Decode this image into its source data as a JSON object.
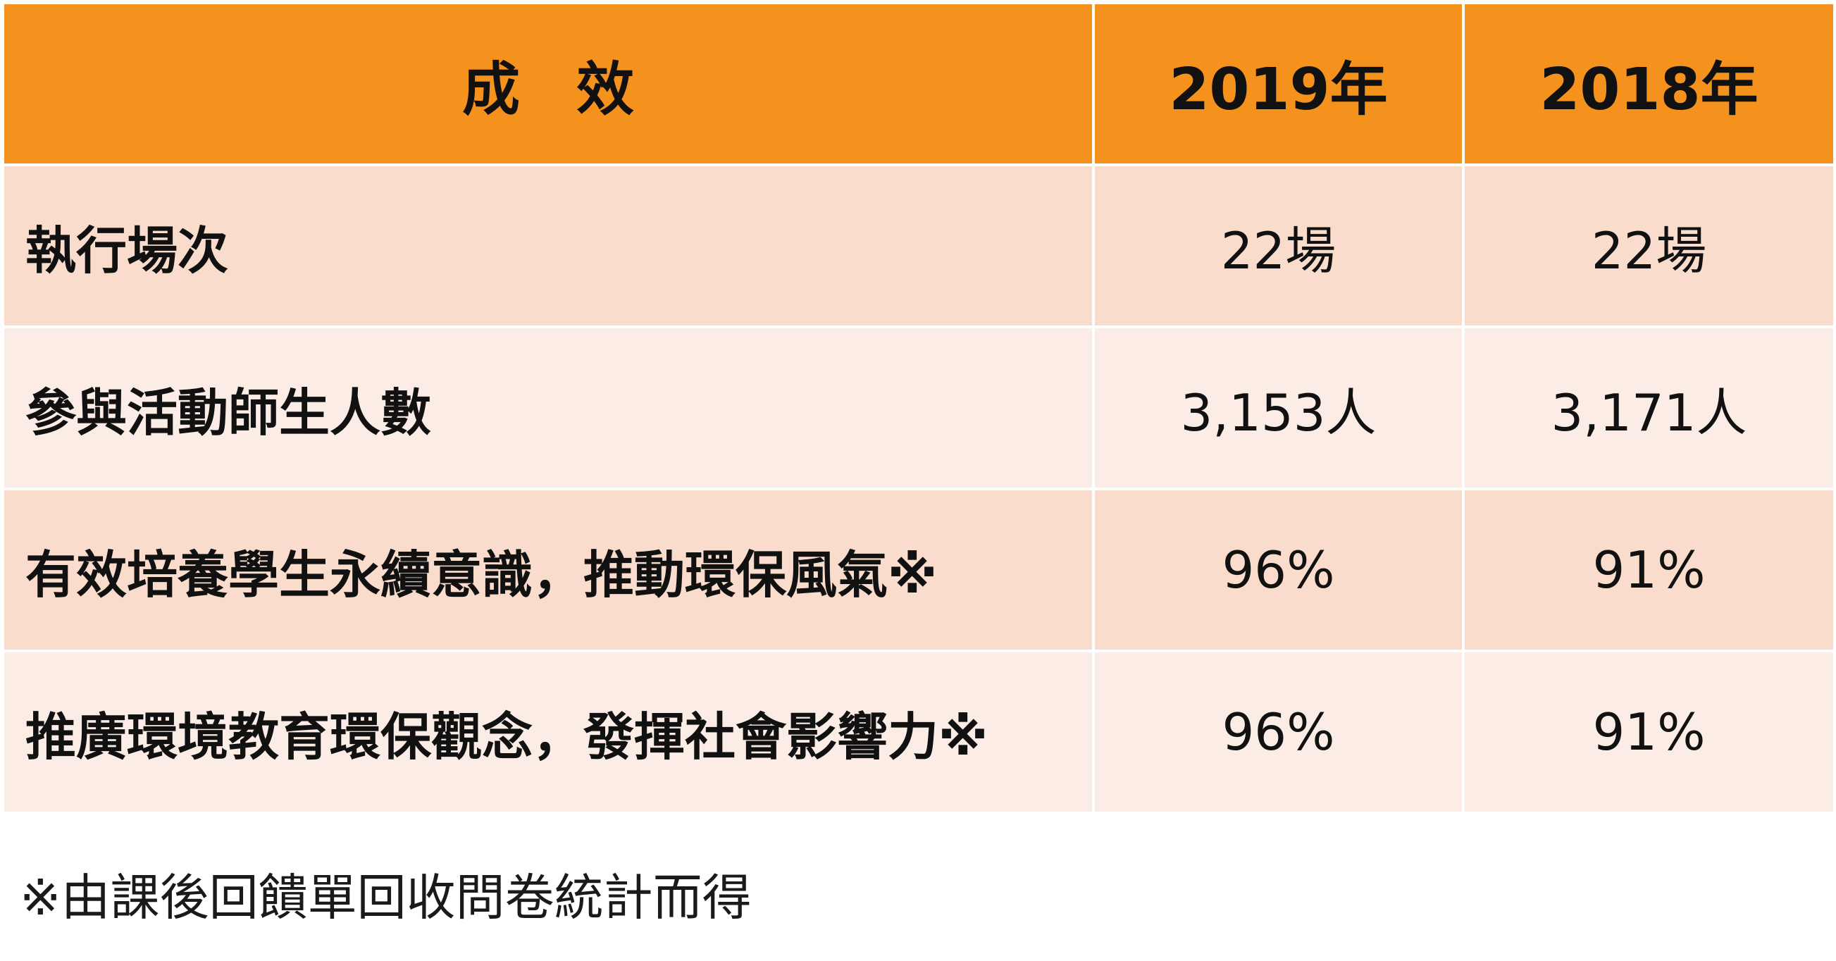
{
  "table": {
    "headers": [
      "成效",
      "2019年",
      "2018年"
    ],
    "rows": [
      {
        "label": "執行場次",
        "values": [
          "22場",
          "22場"
        ]
      },
      {
        "label": "參與活動師生人數",
        "values": [
          "3,153人",
          "3,171人"
        ]
      },
      {
        "label": "有效培養學生永續意識，推動環保風氣※",
        "values": [
          "96%",
          "91%"
        ]
      },
      {
        "label": "推廣環境教育環保觀念，發揮社會影響力※",
        "values": [
          "96%",
          "91%"
        ]
      }
    ]
  },
  "footnote": "※由課後回饋單回收問卷統計而得",
  "colors": {
    "header_bg": "#f5921e",
    "row_odd_bg": "#f9dccc",
    "row_even_bg": "#fcece6"
  }
}
